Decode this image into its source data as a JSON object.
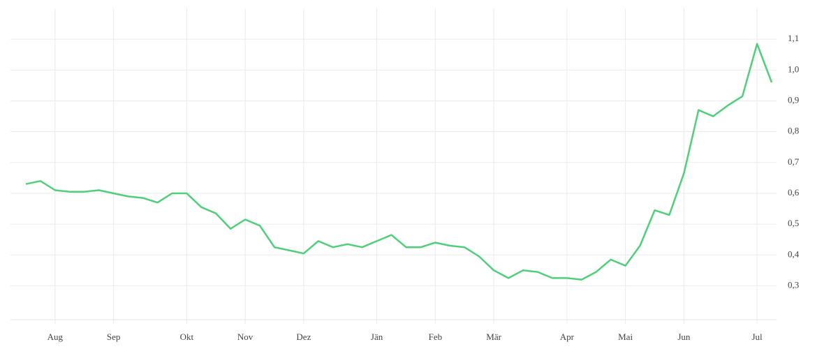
{
  "chart_data": {
    "type": "line",
    "categories": [
      null,
      null,
      "Aug",
      null,
      null,
      null,
      "Sep",
      null,
      null,
      null,
      null,
      "Okt",
      null,
      null,
      null,
      "Nov",
      null,
      null,
      null,
      "Dez",
      null,
      null,
      null,
      null,
      "Jän",
      null,
      null,
      null,
      "Feb",
      null,
      null,
      null,
      "Mär",
      null,
      null,
      null,
      null,
      "Apr",
      null,
      null,
      null,
      "Mai",
      null,
      null,
      null,
      "Jun",
      null,
      null,
      null,
      null,
      "Jul",
      null
    ],
    "series": [
      {
        "color": "#4fcf7a",
        "values": [
          0.63,
          0.64,
          0.61,
          0.605,
          0.605,
          0.61,
          0.6,
          0.59,
          0.585,
          0.57,
          0.6,
          0.6,
          0.555,
          0.535,
          0.485,
          0.515,
          0.495,
          0.425,
          0.415,
          0.405,
          0.445,
          0.425,
          0.435,
          0.425,
          0.445,
          0.465,
          0.425,
          0.425,
          0.44,
          0.43,
          0.425,
          0.395,
          0.35,
          0.325,
          0.35,
          0.345,
          0.325,
          0.325,
          0.32,
          0.345,
          0.385,
          0.365,
          0.43,
          0.545,
          0.53,
          0.665,
          0.87,
          0.85,
          0.885,
          0.915,
          1.085,
          0.96
        ]
      }
    ],
    "ylim": [
      0.19,
      1.2
    ],
    "yticks": [
      {
        "value": 0.3,
        "label": "0,3"
      },
      {
        "value": 0.4,
        "label": "0,4"
      },
      {
        "value": 0.5,
        "label": "0,5"
      },
      {
        "value": 0.6,
        "label": "0,6"
      },
      {
        "value": 0.7,
        "label": "0,7"
      },
      {
        "value": 0.8,
        "label": "0,8"
      },
      {
        "value": 0.9,
        "label": "0,9"
      },
      {
        "value": 1.0,
        "label": "1,0"
      },
      {
        "value": 1.1,
        "label": "1,1"
      }
    ],
    "grid": true
  }
}
